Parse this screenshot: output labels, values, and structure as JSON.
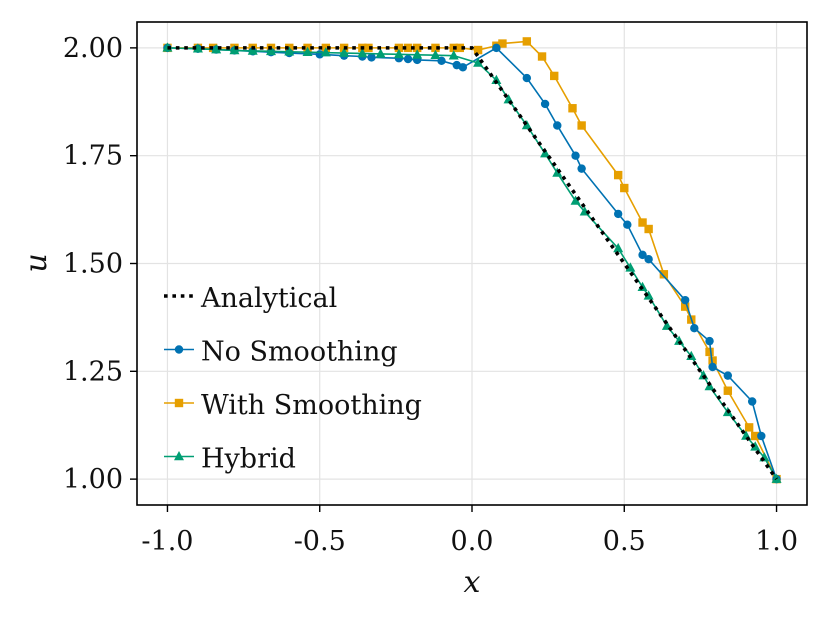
{
  "chart_data": {
    "type": "line",
    "title": "",
    "xlabel": "x",
    "ylabel": "u",
    "xlim": [
      -1.1,
      1.1
    ],
    "ylim": [
      0.94,
      2.06
    ],
    "xticks": [
      -1.0,
      -0.5,
      0.0,
      0.5,
      1.0
    ],
    "xtick_labels": [
      "-1.0",
      "-0.5",
      "0.0",
      "0.5",
      "1.0"
    ],
    "yticks": [
      1.0,
      1.25,
      1.5,
      1.75,
      2.0
    ],
    "ytick_labels": [
      "1.00",
      "1.25",
      "1.50",
      "1.75",
      "2.00"
    ],
    "grid": true,
    "legend_position": "left",
    "series": [
      {
        "name": "Analytical",
        "style": "dotted",
        "marker": "none",
        "color": "#000000",
        "x": [
          -1.0,
          0.0,
          1.0
        ],
        "y": [
          2.0,
          2.0,
          1.0
        ]
      },
      {
        "name": "No Smoothing",
        "style": "solid",
        "marker": "circle",
        "color": "#0072B2",
        "x": [
          -1.0,
          -0.9,
          -0.84,
          -0.78,
          -0.72,
          -0.66,
          -0.6,
          -0.5,
          -0.42,
          -0.36,
          -0.33,
          -0.24,
          -0.21,
          -0.18,
          -0.1,
          -0.05,
          -0.03,
          0.08,
          0.18,
          0.24,
          0.28,
          0.34,
          0.36,
          0.48,
          0.51,
          0.56,
          0.58,
          0.7,
          0.73,
          0.78,
          0.79,
          0.84,
          0.92,
          0.95,
          1.0
        ],
        "y": [
          2.0,
          1.998,
          1.996,
          1.994,
          1.992,
          1.99,
          1.988,
          1.985,
          1.982,
          1.98,
          1.978,
          1.976,
          1.974,
          1.972,
          1.97,
          1.96,
          1.955,
          2.0,
          1.93,
          1.87,
          1.82,
          1.75,
          1.72,
          1.615,
          1.59,
          1.52,
          1.51,
          1.415,
          1.35,
          1.32,
          1.26,
          1.24,
          1.18,
          1.1,
          1.0
        ]
      },
      {
        "name": "With Smoothing",
        "style": "solid",
        "marker": "square",
        "color": "#E69F00",
        "x": [
          -1.0,
          -0.9,
          -0.85,
          -0.78,
          -0.72,
          -0.66,
          -0.6,
          -0.54,
          -0.48,
          -0.42,
          -0.36,
          -0.34,
          -0.24,
          -0.21,
          -0.18,
          -0.12,
          -0.06,
          -0.04,
          0.02,
          0.08,
          0.1,
          0.18,
          0.23,
          0.27,
          0.33,
          0.36,
          0.48,
          0.5,
          0.56,
          0.58,
          0.63,
          0.7,
          0.72,
          0.78,
          0.79,
          0.84,
          0.91,
          0.93,
          1.0
        ],
        "y": [
          2.0,
          2.0,
          2.0,
          2.0,
          2.0,
          2.0,
          2.0,
          2.0,
          2.0,
          2.0,
          2.0,
          2.0,
          2.0,
          2.0,
          2.0,
          2.0,
          2.0,
          2.0,
          1.995,
          2.005,
          2.01,
          2.015,
          1.98,
          1.935,
          1.86,
          1.82,
          1.705,
          1.675,
          1.595,
          1.58,
          1.475,
          1.4,
          1.37,
          1.295,
          1.275,
          1.205,
          1.12,
          1.1,
          1.0
        ]
      },
      {
        "name": "Hybrid",
        "style": "solid",
        "marker": "triangle",
        "color": "#009E73",
        "x": [
          -1.0,
          -0.9,
          -0.84,
          -0.78,
          -0.72,
          -0.66,
          -0.6,
          -0.54,
          -0.48,
          -0.42,
          -0.36,
          -0.3,
          -0.24,
          -0.18,
          -0.12,
          -0.06,
          0.02,
          0.08,
          0.12,
          0.18,
          0.24,
          0.28,
          0.34,
          0.37,
          0.48,
          0.52,
          0.56,
          0.58,
          0.64,
          0.68,
          0.72,
          0.76,
          0.78,
          0.84,
          0.9,
          0.93,
          0.96,
          1.0
        ],
        "y": [
          2.0,
          1.998,
          1.996,
          1.994,
          1.993,
          1.992,
          1.991,
          1.99,
          1.989,
          1.988,
          1.987,
          1.986,
          1.985,
          1.984,
          1.983,
          1.982,
          1.965,
          1.925,
          1.88,
          1.82,
          1.755,
          1.71,
          1.645,
          1.62,
          1.535,
          1.49,
          1.445,
          1.425,
          1.355,
          1.32,
          1.285,
          1.24,
          1.215,
          1.155,
          1.1,
          1.075,
          1.05,
          1.0
        ]
      }
    ]
  }
}
